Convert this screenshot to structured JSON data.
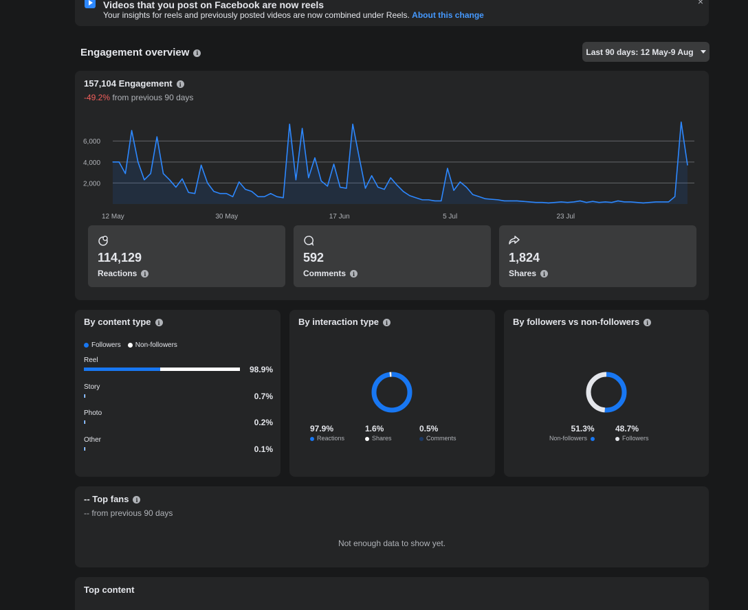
{
  "banner": {
    "title": "Videos that you post on Facebook are now reels",
    "text": "Your insights for reels and previously posted videos are now combined under Reels.",
    "link": "About this change",
    "close": "×"
  },
  "engagement": {
    "heading": "Engagement overview",
    "date_range": "Last 90 days: 12 May-9 Aug",
    "total": "157,104 Engagement",
    "change_value": "-49.2%",
    "change_text": "from previous 90 days"
  },
  "stats": [
    {
      "icon": "reactions-icon",
      "value": "114,129",
      "label": "Reactions"
    },
    {
      "icon": "comment-icon",
      "value": "592",
      "label": "Comments"
    },
    {
      "icon": "share-icon",
      "value": "1,824",
      "label": "Shares"
    }
  ],
  "chart_data": {
    "type": "area",
    "title": "",
    "xlabel": "",
    "ylabel": "",
    "y_ticks": [
      "2,000",
      "4,000",
      "6,000"
    ],
    "y_tick_values": [
      2000,
      4000,
      6000
    ],
    "ylim": [
      0,
      8500
    ],
    "x_tick_labels": [
      "12 May",
      "30 May",
      "17 Jun",
      "5 Jul",
      "23 Jul"
    ],
    "x_tick_index": [
      0,
      18,
      36,
      54,
      72
    ],
    "values": [
      4000,
      4000,
      2900,
      7000,
      4000,
      2300,
      2900,
      6400,
      2900,
      2300,
      1600,
      2400,
      1100,
      1000,
      3700,
      2000,
      1200,
      1000,
      1000,
      700,
      2100,
      1400,
      1200,
      700,
      700,
      1000,
      700,
      600,
      7600,
      2300,
      7200,
      2500,
      4400,
      2200,
      1700,
      3800,
      1600,
      1500,
      7600,
      4500,
      1500,
      2700,
      1600,
      1400,
      2500,
      1800,
      1200,
      800,
      600,
      400,
      400,
      300,
      300,
      3400,
      1300,
      2100,
      1600,
      900,
      700,
      500,
      450,
      400,
      300,
      300,
      300,
      250,
      200,
      150,
      150,
      100,
      150,
      200,
      150,
      200,
      300,
      150,
      250,
      150,
      200,
      150,
      300,
      200,
      200,
      150,
      100,
      150,
      200,
      200,
      200,
      700,
      7800,
      3700
    ]
  },
  "content_type": {
    "title": "By content type",
    "legend": [
      "Followers",
      "Non-followers"
    ],
    "colors": {
      "followers": "#1877f2",
      "non_followers": "#ffffff"
    },
    "rows": [
      {
        "label": "Reel",
        "pct": "98.9%",
        "followers_share": 0.49,
        "total": 0.989
      },
      {
        "label": "Story",
        "pct": "0.7%",
        "followers_share": 0.6,
        "total": 0.007
      },
      {
        "label": "Photo",
        "pct": "0.2%",
        "followers_share": 0.6,
        "total": 0.002
      },
      {
        "label": "Other",
        "pct": "0.1%",
        "followers_share": 0.6,
        "total": 0.001
      }
    ]
  },
  "interaction_type": {
    "title": "By interaction type",
    "items": [
      {
        "pct": "97.9%",
        "label": "Reactions",
        "value": 97.9,
        "color": "#1877f2"
      },
      {
        "pct": "1.6%",
        "label": "Shares",
        "value": 1.6,
        "color": "#ffffff"
      },
      {
        "pct": "0.5%",
        "label": "Comments",
        "value": 0.5,
        "color": "#1c3a66"
      }
    ]
  },
  "followers": {
    "title": "By followers vs non-followers",
    "items": [
      {
        "pct": "51.3%",
        "label": "Non-followers",
        "value": 51.3,
        "color": "#1877f2"
      },
      {
        "pct": "48.7%",
        "label": "Followers",
        "value": 48.7,
        "color": "#e4e6eb"
      }
    ]
  },
  "top_fans": {
    "title": "-- Top fans",
    "subtitle": "-- from previous 90 days",
    "empty": "Not enough data to show yet."
  },
  "top_content": {
    "title": "Top content"
  }
}
